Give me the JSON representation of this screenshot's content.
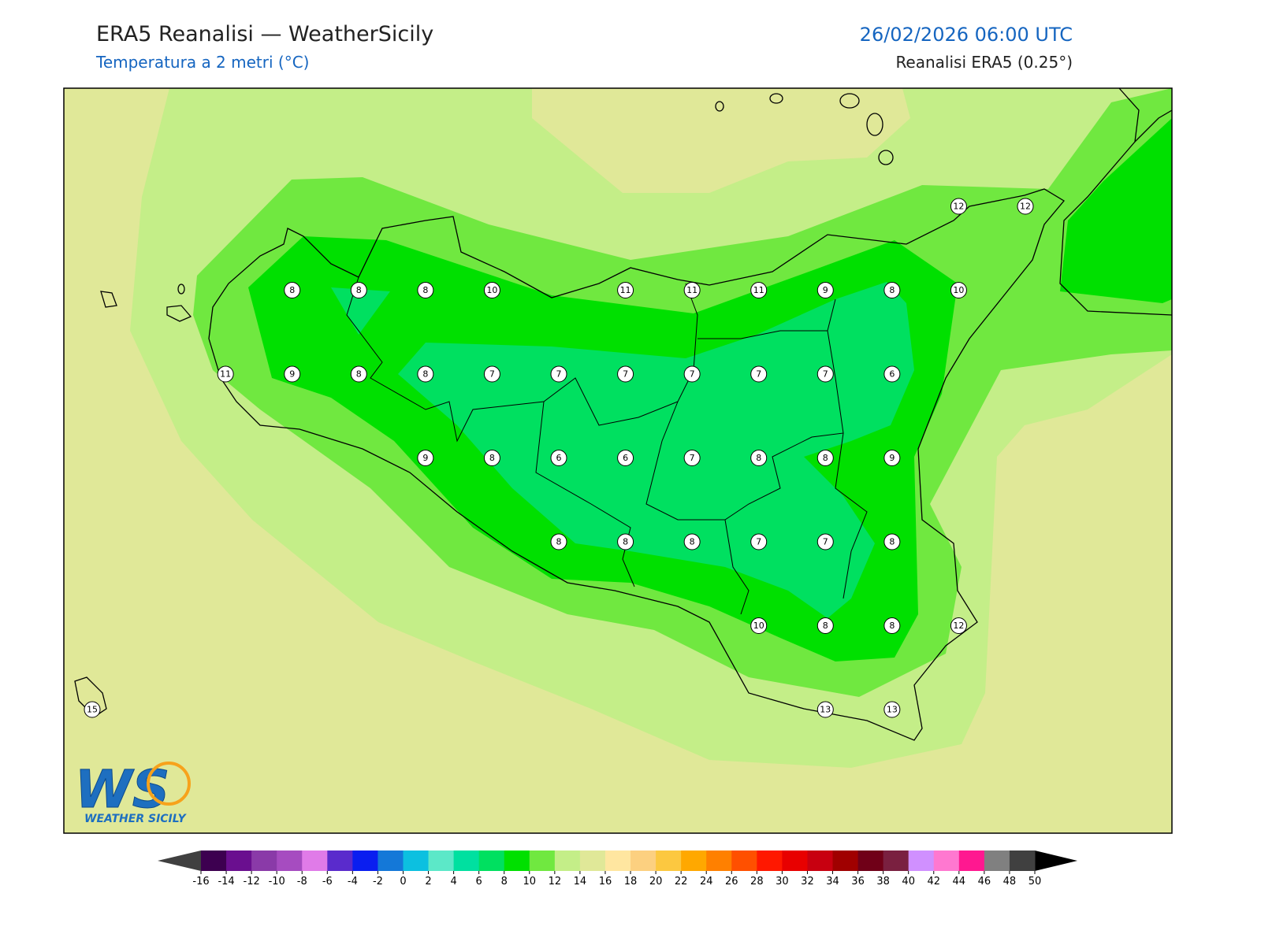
{
  "header": {
    "title": "ERA5 Reanalisi — WeatherSicily",
    "subtitle": "Temperatura a 2 metri (°C)",
    "date": "26/02/2026 06:00 UTC",
    "source": "Reanalisi ERA5 (0.25°)"
  },
  "map": {
    "stations": [
      [
        null,
        null,
        null,
        null,
        null,
        null,
        null,
        null,
        null,
        null,
        null,
        null,
        null,
        12,
        12
      ],
      [
        null,
        null,
        null,
        8,
        8,
        8,
        10,
        null,
        11,
        11,
        11,
        9,
        8,
        10,
        null
      ],
      [
        null,
        null,
        11,
        9,
        8,
        8,
        7,
        7,
        7,
        7,
        7,
        7,
        6,
        null,
        null
      ],
      [
        null,
        null,
        null,
        null,
        null,
        9,
        8,
        6,
        6,
        7,
        8,
        8,
        9,
        null,
        null
      ],
      [
        null,
        null,
        null,
        null,
        null,
        null,
        null,
        8,
        8,
        8,
        7,
        7,
        8,
        null,
        null
      ],
      [
        null,
        null,
        null,
        null,
        null,
        null,
        null,
        null,
        null,
        null,
        10,
        8,
        8,
        12,
        null
      ],
      [
        15,
        null,
        null,
        null,
        null,
        null,
        null,
        null,
        null,
        null,
        null,
        13,
        13,
        null,
        null
      ]
    ]
  },
  "colorbar": {
    "ticks": [
      -16,
      -14,
      -12,
      -10,
      -8,
      -6,
      -4,
      -2,
      0,
      2,
      4,
      6,
      8,
      10,
      12,
      14,
      16,
      18,
      20,
      22,
      24,
      26,
      28,
      30,
      32,
      34,
      36,
      38,
      40,
      42,
      44,
      46,
      48,
      50
    ],
    "colors": [
      "#3d0050",
      "#6a0f8f",
      "#8a3aa8",
      "#a64cc0",
      "#e07be8",
      "#5a2bcc",
      "#0a1ef0",
      "#1478d8",
      "#0cc0e0",
      "#5ce8c8",
      "#00e0a0",
      "#00e060",
      "#00e000",
      "#70e840",
      "#c4ee88",
      "#e0e898",
      "#ffe6a0",
      "#fcd080",
      "#fcc840",
      "#ffa800",
      "#ff8000",
      "#ff5000",
      "#ff1800",
      "#e80000",
      "#c80010",
      "#a00000",
      "#700018",
      "#7a2040",
      "#d090ff",
      "#ff78d0",
      "#ff1890",
      "#808080",
      "#404040"
    ],
    "under_color": "#404040",
    "over_color": "#000000"
  },
  "logo": {
    "mark": "WS",
    "name": "WEATHER SICILY"
  }
}
